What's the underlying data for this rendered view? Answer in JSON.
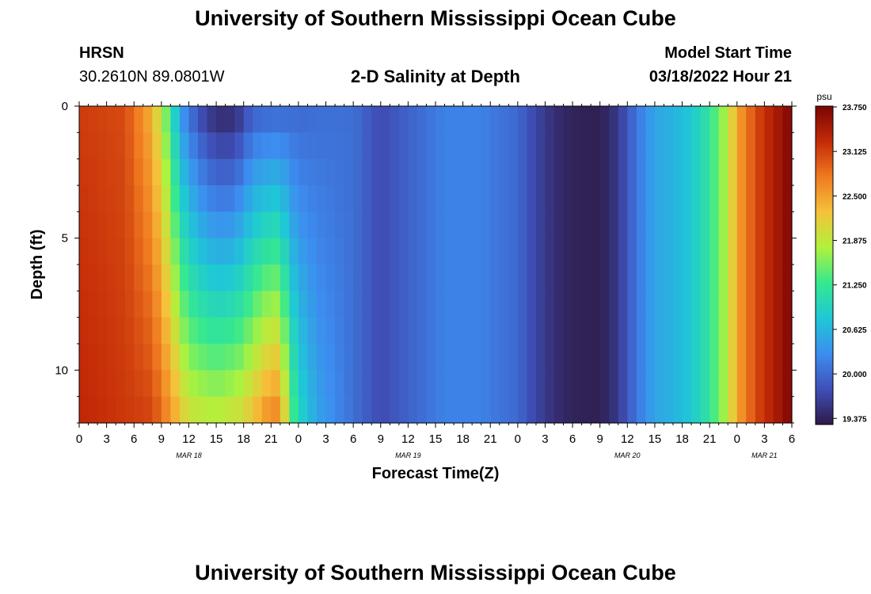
{
  "header": {
    "title": "University of Southern Mississippi Ocean Cube",
    "station": "HRSN",
    "coords": "30.2610N  89.0801W",
    "subtitle": "2-D Salinity at Depth",
    "start_label": "Model Start Time",
    "start_value": "03/18/2022 Hour 21"
  },
  "footer": {
    "title": "University of Southern Mississippi Ocean Cube"
  },
  "chart_data": {
    "type": "heatmap",
    "xlabel": "Forecast Time(Z)",
    "ylabel": "Depth (ft)",
    "colorbar_unit": "psu",
    "x_range_hours": [
      0,
      78
    ],
    "y_range_ft": [
      0,
      12
    ],
    "x_tick_labels": [
      "0",
      "3",
      "6",
      "9",
      "12",
      "15",
      "18",
      "21",
      "0",
      "3",
      "6",
      "9",
      "12",
      "15",
      "18",
      "21",
      "0",
      "3",
      "6",
      "9",
      "12",
      "15",
      "18",
      "21",
      "0",
      "3",
      "6"
    ],
    "date_labels": [
      {
        "label": "MAR 18",
        "hour": 12
      },
      {
        "label": "MAR 19",
        "hour": 36
      },
      {
        "label": "MAR 20",
        "hour": 60
      },
      {
        "label": "MAR 21",
        "hour": 75
      }
    ],
    "y_ticks": [
      0,
      5,
      10
    ],
    "colorbar_ticks": [
      "23.750",
      "23.125",
      "22.500",
      "21.875",
      "21.250",
      "20.625",
      "20.000",
      "19.375"
    ],
    "colorbar_range": [
      19.3,
      23.75
    ],
    "colors": [
      "#2e1a47",
      "#3f4fb8",
      "#3d8df0",
      "#1ec8d6",
      "#35e890",
      "#b0f23c",
      "#f5c23a",
      "#f07a20",
      "#c42a07",
      "#7a0403"
    ],
    "surface_profile": [
      {
        "hour": 0,
        "value": 23.15
      },
      {
        "hour": 5,
        "value": 23.05
      },
      {
        "hour": 8,
        "value": 22.35
      },
      {
        "hour": 9,
        "value": 21.8
      },
      {
        "hour": 10,
        "value": 21.2
      },
      {
        "hour": 11,
        "value": 20.4
      },
      {
        "hour": 13,
        "value": 19.75
      },
      {
        "hour": 15,
        "value": 19.42
      },
      {
        "hour": 17,
        "value": 19.42
      },
      {
        "hour": 19,
        "value": 19.9
      },
      {
        "hour": 21,
        "value": 19.95
      },
      {
        "hour": 24,
        "value": 20.0
      },
      {
        "hour": 27,
        "value": 20.05
      },
      {
        "hour": 30,
        "value": 20.05
      },
      {
        "hour": 33,
        "value": 19.75
      },
      {
        "hour": 36,
        "value": 19.95
      },
      {
        "hour": 40,
        "value": 20.2
      },
      {
        "hour": 44,
        "value": 20.2
      },
      {
        "hour": 48,
        "value": 20.0
      },
      {
        "hour": 50,
        "value": 19.7
      },
      {
        "hour": 52,
        "value": 19.5
      },
      {
        "hour": 54,
        "value": 19.38
      },
      {
        "hour": 57,
        "value": 19.35
      },
      {
        "hour": 59,
        "value": 19.6
      },
      {
        "hour": 61,
        "value": 20.1
      },
      {
        "hour": 63,
        "value": 20.5
      },
      {
        "hour": 65,
        "value": 20.6
      },
      {
        "hour": 67,
        "value": 20.8
      },
      {
        "hour": 69,
        "value": 21.2
      },
      {
        "hour": 71,
        "value": 21.85
      },
      {
        "hour": 72,
        "value": 22.45
      },
      {
        "hour": 74,
        "value": 23.05
      },
      {
        "hour": 76,
        "value": 23.4
      },
      {
        "hour": 78,
        "value": 23.72
      }
    ],
    "bottom_profile": [
      {
        "hour": 0,
        "value": 23.3
      },
      {
        "hour": 8,
        "value": 23.1
      },
      {
        "hour": 10,
        "value": 22.6
      },
      {
        "hour": 12,
        "value": 22.0
      },
      {
        "hour": 15,
        "value": 21.9
      },
      {
        "hour": 18,
        "value": 22.1
      },
      {
        "hour": 21,
        "value": 22.75
      },
      {
        "hour": 22,
        "value": 22.7
      },
      {
        "hour": 23,
        "value": 21.6
      },
      {
        "hour": 24,
        "value": 21.0
      },
      {
        "hour": 26,
        "value": 20.5
      },
      {
        "hour": 30,
        "value": 20.05
      },
      {
        "hour": 33,
        "value": 19.8
      },
      {
        "hour": 36,
        "value": 19.95
      },
      {
        "hour": 40,
        "value": 20.2
      },
      {
        "hour": 44,
        "value": 20.2
      },
      {
        "hour": 48,
        "value": 20.0
      },
      {
        "hour": 50,
        "value": 19.7
      },
      {
        "hour": 52,
        "value": 19.5
      },
      {
        "hour": 54,
        "value": 19.38
      },
      {
        "hour": 57,
        "value": 19.35
      },
      {
        "hour": 59,
        "value": 19.6
      },
      {
        "hour": 61,
        "value": 20.1
      },
      {
        "hour": 63,
        "value": 20.5
      },
      {
        "hour": 65,
        "value": 20.6
      },
      {
        "hour": 67,
        "value": 20.8
      },
      {
        "hour": 69,
        "value": 21.2
      },
      {
        "hour": 71,
        "value": 21.85
      },
      {
        "hour": 72,
        "value": 22.45
      },
      {
        "hour": 74,
        "value": 23.05
      },
      {
        "hour": 76,
        "value": 23.4
      },
      {
        "hour": 78,
        "value": 23.72
      }
    ],
    "depth_blend_until_hour": 30
  }
}
